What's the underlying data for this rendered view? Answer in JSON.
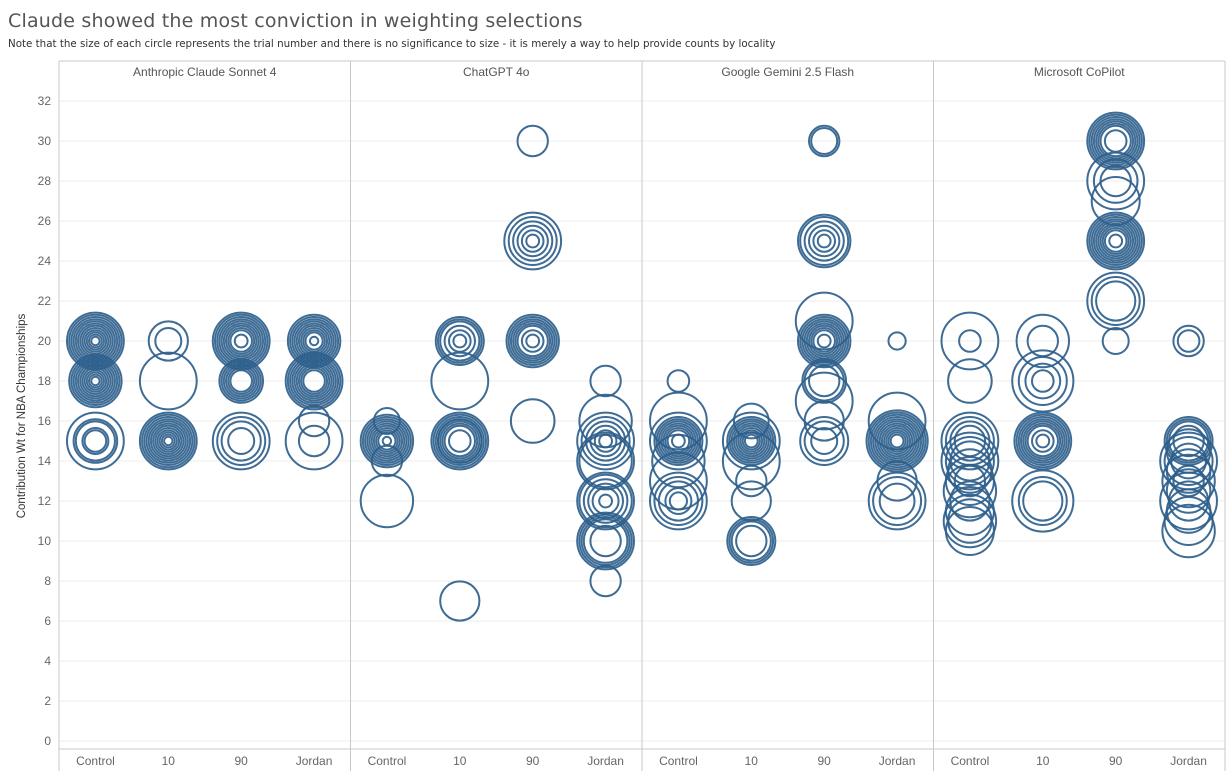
{
  "chart_data": {
    "type": "scatter",
    "title": "Claude showed the most conviction in weighting selections",
    "subtitle": "Note that the size of each circle represents the trial number and there is no significance to size - it is merely a way to help provide counts by locality",
    "ylabel": "Contribution Wt for NBA Championships",
    "ylim": [
      0,
      33
    ],
    "yticks": [
      0,
      2,
      4,
      6,
      8,
      10,
      12,
      14,
      16,
      18,
      20,
      22,
      24,
      26,
      28,
      30,
      32
    ],
    "marker_color": "#2e5f8c",
    "grid_color": "#ececec",
    "divider_color": "#c8c8c8",
    "panels": [
      {
        "name": "Anthropic Claude Sonnet 4",
        "categories": [
          "Control",
          "10",
          "90",
          "Jordan"
        ],
        "series": [
          {
            "category": "Control",
            "values": [
              20,
              20,
              20,
              20,
              20,
              20,
              20,
              20,
              20,
              20,
              20,
              20,
              18,
              18,
              18,
              18,
              18,
              18,
              18,
              18,
              18,
              18,
              18,
              15,
              15,
              15,
              15,
              15
            ],
            "trials": [
              1,
              2,
              3,
              4,
              5,
              6,
              7,
              8,
              9,
              10,
              11,
              12,
              1,
              2,
              3,
              4,
              5,
              6,
              7,
              8,
              9,
              10,
              11,
              4,
              5,
              8,
              9,
              12
            ]
          },
          {
            "category": "10",
            "values": [
              20,
              20,
              18,
              15,
              15,
              15,
              15,
              15,
              15,
              15,
              15,
              15,
              15,
              15,
              15
            ],
            "trials": [
              5,
              8,
              12,
              1,
              2,
              3,
              4,
              5,
              6,
              7,
              8,
              9,
              10,
              11,
              12
            ]
          },
          {
            "category": "90",
            "values": [
              20,
              20,
              20,
              20,
              20,
              20,
              20,
              20,
              20,
              20,
              18,
              18,
              18,
              18,
              18,
              18,
              15,
              15,
              15,
              15
            ],
            "trials": [
              2,
              4,
              5,
              6,
              7,
              8,
              9,
              10,
              11,
              12,
              4,
              5,
              6,
              7,
              8,
              9,
              5,
              8,
              10,
              12
            ]
          },
          {
            "category": "Jordan",
            "values": [
              20,
              20,
              20,
              20,
              20,
              20,
              20,
              20,
              20,
              20,
              18,
              18,
              18,
              18,
              18,
              18,
              18,
              18,
              18,
              16,
              15,
              15
            ],
            "trials": [
              1,
              3,
              4,
              5,
              6,
              7,
              8,
              9,
              10,
              11,
              4,
              5,
              6,
              7,
              8,
              9,
              10,
              11,
              12,
              6,
              6,
              12
            ]
          }
        ]
      },
      {
        "name": "ChatGPT 4o",
        "categories": [
          "Control",
          "10",
          "90",
          "Jordan"
        ],
        "series": [
          {
            "category": "Control",
            "values": [
              16,
              15,
              15,
              15,
              15,
              15,
              15,
              15,
              15,
              15,
              15,
              14,
              12
            ],
            "trials": [
              5,
              1,
              3,
              4,
              5,
              6,
              7,
              8,
              9,
              10,
              11,
              6,
              11
            ]
          },
          {
            "category": "10",
            "values": [
              20,
              20,
              20,
              20,
              20,
              20,
              18,
              15,
              15,
              15,
              15,
              15,
              15,
              15,
              15,
              15,
              7
            ],
            "trials": [
              2,
              4,
              6,
              8,
              9,
              10,
              12,
              4,
              6,
              7,
              8,
              9,
              10,
              11,
              12,
              9,
              8
            ]
          },
          {
            "category": "90",
            "values": [
              30,
              25,
              25,
              25,
              25,
              25,
              25,
              20,
              20,
              20,
              20,
              20,
              20,
              20,
              20,
              16
            ],
            "trials": [
              6,
              2,
              4,
              6,
              8,
              10,
              12,
              2,
              4,
              6,
              7,
              8,
              9,
              10,
              11,
              9
            ]
          },
          {
            "category": "Jordan",
            "values": [
              18,
              16,
              15,
              15,
              15,
              15,
              15,
              15,
              14,
              14,
              12,
              12,
              12,
              12,
              12,
              12,
              10,
              10,
              10,
              10,
              10,
              8
            ],
            "trials": [
              6,
              11,
              2,
              4,
              6,
              8,
              10,
              12,
              11,
              12,
              2,
              5,
              7,
              9,
              11,
              12,
              6,
              9,
              10,
              11,
              12,
              6
            ]
          }
        ]
      },
      {
        "name": "Google Gemini 2.5 Flash",
        "categories": [
          "Control",
          "10",
          "90",
          "Jordan"
        ],
        "series": [
          {
            "category": "Control",
            "values": [
              18,
              16,
              15,
              15,
              15,
              15,
              15,
              15,
              15,
              15,
              15,
              14,
              13,
              12,
              12,
              12,
              12,
              12
            ],
            "trials": [
              4,
              12,
              2,
              4,
              5,
              6,
              7,
              8,
              9,
              10,
              12,
              11,
              12,
              3,
              5,
              8,
              10,
              12
            ]
          },
          {
            "category": "10",
            "values": [
              16,
              15,
              15,
              15,
              15,
              15,
              15,
              15,
              15,
              15,
              15,
              14,
              13,
              12,
              10,
              10,
              10,
              10
            ],
            "trials": [
              7,
              2,
              3,
              4,
              5,
              6,
              7,
              8,
              9,
              10,
              12,
              12,
              6,
              8,
              6,
              8,
              9,
              10
            ]
          },
          {
            "category": "90",
            "values": [
              30,
              30,
              25,
              25,
              25,
              25,
              25,
              25,
              21,
              20,
              20,
              20,
              20,
              20,
              20,
              20,
              20,
              20,
              18,
              18,
              18,
              17,
              16,
              15,
              15,
              15
            ],
            "trials": [
              5,
              6,
              2,
              4,
              6,
              8,
              10,
              11,
              12,
              2,
              4,
              5,
              6,
              7,
              8,
              9,
              10,
              11,
              6,
              8,
              9,
              12,
              8,
              5,
              8,
              10
            ]
          },
          {
            "category": "Jordan",
            "values": [
              20,
              16,
              15,
              15,
              15,
              15,
              15,
              15,
              15,
              15,
              15,
              15,
              15,
              15,
              13,
              12,
              12,
              12
            ],
            "trials": [
              3,
              12,
              2,
              3,
              4,
              5,
              6,
              7,
              8,
              9,
              10,
              11,
              12,
              13,
              8,
              7,
              10,
              12
            ]
          }
        ]
      },
      {
        "name": "Microsoft CoPilot",
        "categories": [
          "Control",
          "10",
          "90",
          "Jordan"
        ],
        "series": [
          {
            "category": "Control",
            "values": [
              20,
              20,
              18,
              15,
              15,
              15,
              15,
              14,
              14,
              14,
              13.5,
              13,
              13,
              12.5,
              12,
              11.5,
              11,
              11,
              10.5
            ],
            "trials": [
              4,
              12,
              9,
              6,
              8,
              10,
              12,
              8,
              10,
              12,
              9,
              6,
              10,
              11,
              8,
              10,
              9,
              11,
              10
            ]
          },
          {
            "category": "10",
            "values": [
              20,
              20,
              18,
              18,
              18,
              18,
              15,
              15,
              15,
              15,
              15,
              15,
              15,
              15,
              15,
              12,
              12,
              12
            ],
            "trials": [
              6,
              11,
              4,
              7,
              10,
              13,
              2,
              4,
              6,
              7,
              8,
              9,
              10,
              11,
              12,
              8,
              10,
              13
            ]
          },
          {
            "category": "90",
            "values": [
              30,
              30,
              30,
              30,
              30,
              30,
              30,
              30,
              28,
              28,
              28,
              27,
              25,
              25,
              25,
              25,
              25,
              25,
              25,
              25,
              25,
              25,
              22,
              22,
              22,
              20
            ],
            "trials": [
              4,
              6,
              7,
              8,
              9,
              10,
              11,
              12,
              6,
              9,
              12,
              10,
              2,
              4,
              5,
              6,
              7,
              8,
              9,
              10,
              11,
              12,
              8,
              10,
              12,
              5
            ]
          },
          {
            "category": "Jordan",
            "values": [
              20,
              20,
              15,
              15,
              15,
              15,
              14.5,
              14,
              14,
              14,
              13.5,
              13,
              13,
              12.5,
              12,
              12,
              11.5,
              11,
              10.5
            ],
            "trials": [
              4,
              6,
              6,
              8,
              9,
              10,
              9,
              7,
              10,
              12,
              9,
              6,
              11,
              9,
              8,
              12,
              9,
              10,
              11
            ]
          }
        ]
      }
    ]
  }
}
